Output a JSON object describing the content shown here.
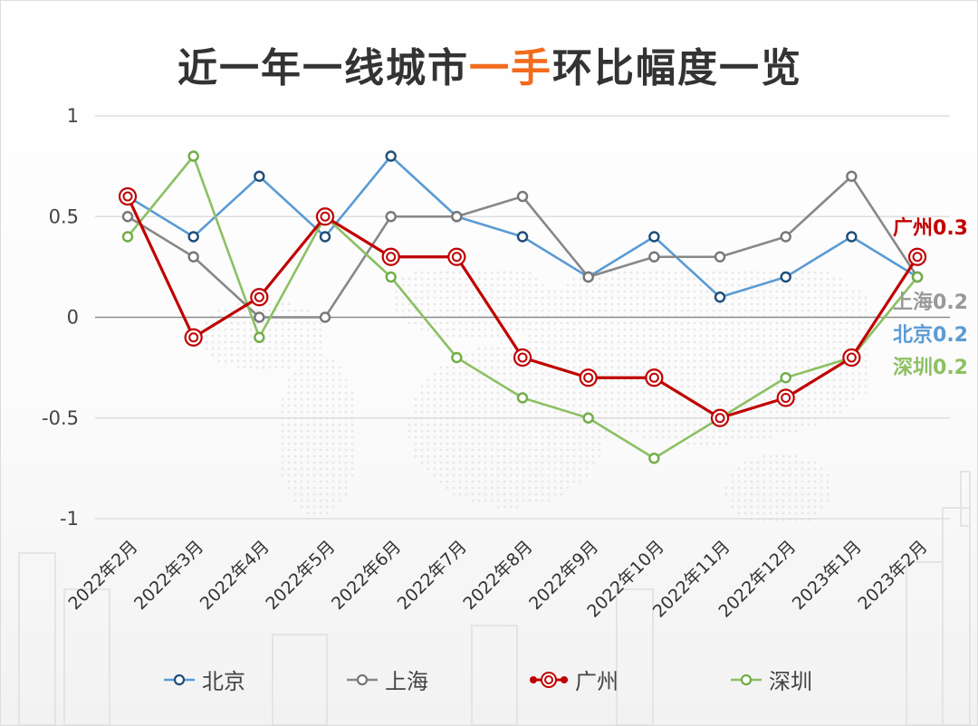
{
  "title": {
    "prefix": "近一年一线城市",
    "highlight": "一手",
    "suffix": "环比幅度一览",
    "highlight_color": "#f26b1d"
  },
  "chart_data": {
    "type": "line",
    "title": "近一年一线城市一手环比幅度一览",
    "xlabel": "",
    "ylabel": "",
    "ylim": [
      -1,
      1
    ],
    "yticks": [
      "1",
      "0.5",
      "0",
      "-0.5",
      "-1"
    ],
    "grid": true,
    "legend_position": "bottom",
    "categories": [
      "2022年2月",
      "2022年3月",
      "2022年4月",
      "2022年5月",
      "2022年6月",
      "2022年7月",
      "2022年8月",
      "2022年9月",
      "2022年10月",
      "2022年11月",
      "2022年12月",
      "2023年1月",
      "2023年2月"
    ],
    "series": [
      {
        "name": "北京",
        "color": "#5b9bd5",
        "marker_color": "#1f4e79",
        "values": [
          0.6,
          0.4,
          0.7,
          0.4,
          0.8,
          0.5,
          0.4,
          0.2,
          0.4,
          0.1,
          0.2,
          0.4,
          0.2
        ]
      },
      {
        "name": "上海",
        "color": "#888888",
        "marker_color": "#777777",
        "values": [
          0.5,
          0.3,
          0.0,
          0.0,
          0.5,
          0.5,
          0.6,
          0.2,
          0.3,
          0.3,
          0.4,
          0.7,
          0.2
        ]
      },
      {
        "name": "广州",
        "color": "#c00000",
        "marker_color": "#c00000",
        "values": [
          0.6,
          -0.1,
          0.1,
          0.5,
          0.3,
          0.3,
          -0.2,
          -0.3,
          -0.3,
          -0.5,
          -0.4,
          -0.2,
          0.3
        ]
      },
      {
        "name": "深圳",
        "color": "#8cc063",
        "marker_color": "#70ad47",
        "values": [
          0.4,
          0.8,
          -0.1,
          0.5,
          0.2,
          -0.2,
          -0.4,
          -0.5,
          -0.7,
          -0.5,
          -0.3,
          -0.2,
          0.2
        ]
      }
    ],
    "annotations": [
      {
        "text": "广州0.3",
        "color": "#c00000"
      },
      {
        "text": "上海0.2",
        "color": "#999999"
      },
      {
        "text": "北京0.2",
        "color": "#5b9bd5"
      },
      {
        "text": "深圳0.2",
        "color": "#8cc063"
      }
    ]
  },
  "legend": [
    {
      "label": "北京",
      "icon": "line-circle-marker-blue"
    },
    {
      "label": "上海",
      "icon": "line-circle-marker-gray"
    },
    {
      "label": "广州",
      "icon": "line-double-circle-marker-red"
    },
    {
      "label": "深圳",
      "icon": "line-circle-marker-green"
    }
  ]
}
